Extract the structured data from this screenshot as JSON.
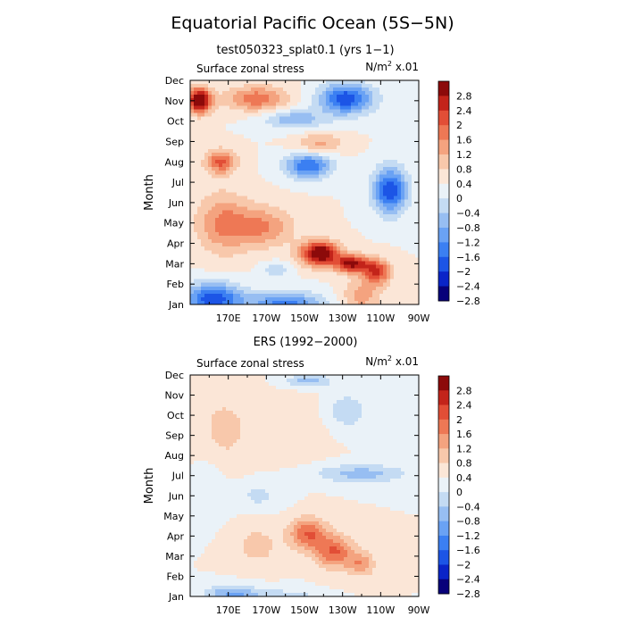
{
  "figure": {
    "title": "Equatorial Pacific Ocean (5S−5N)"
  },
  "colors": [
    "#08007a",
    "#0a24c8",
    "#1c55e6",
    "#3b7ff2",
    "#6aa2f4",
    "#97bef2",
    "#c4dbf3",
    "#eaf2f8",
    "#fbe6d7",
    "#f8c8ab",
    "#f4a37f",
    "#ee7855",
    "#e24e36",
    "#c3241a",
    "#8c0a0a"
  ],
  "chart_data": [
    {
      "type": "heatmap",
      "panel_title": "test050323_splat0.1 (yrs 1−1)",
      "left_label": "Surface zonal stress",
      "units_base": "N/m",
      "units_sup": "2",
      "units_suffix": " x.01",
      "ylabel": "Month",
      "xlim": [
        150,
        270
      ],
      "x_ticks": [
        {
          "value": 170,
          "label": "170E"
        },
        {
          "value": 190,
          "label": "170W"
        },
        {
          "value": 210,
          "label": "150W"
        },
        {
          "value": 230,
          "label": "130W"
        },
        {
          "value": 250,
          "label": "110W"
        },
        {
          "value": 270,
          "label": "90W"
        }
      ],
      "months": [
        "Jan",
        "Feb",
        "Mar",
        "Apr",
        "May",
        "Jun",
        "Jul",
        "Aug",
        "Sep",
        "Oct",
        "Nov",
        "Dec"
      ],
      "colorbar": {
        "levels": [
          -3.2,
          -2.8,
          -2.4,
          -2,
          -1.6,
          -1.2,
          -0.8,
          -0.4,
          0,
          0.4,
          0.8,
          1.2,
          1.6,
          2,
          2.4,
          2.8,
          3.2
        ],
        "labels": [
          "2.8",
          "2.4",
          "2",
          "1.6",
          "1.2",
          "0.8",
          "0.4",
          "0",
          "−0.4",
          "−0.8",
          "−1.2",
          "−1.6",
          "−2",
          "−2.4",
          "−2.8"
        ]
      },
      "features": [
        {
          "lon": 155,
          "m": 11,
          "sx": 6,
          "sy": 0.6,
          "a": 3.2
        },
        {
          "lon": 185,
          "m": 11.1,
          "sx": 16,
          "sy": 0.6,
          "a": 1.5
        },
        {
          "lon": 232,
          "m": 11.1,
          "sx": 14,
          "sy": 0.75,
          "a": -2.3
        },
        {
          "lon": 205,
          "m": 10.1,
          "sx": 16,
          "sy": 0.5,
          "a": -1.1
        },
        {
          "lon": 218,
          "m": 8.9,
          "sx": 12,
          "sy": 0.5,
          "a": 0.9
        },
        {
          "lon": 166,
          "m": 8,
          "sx": 8,
          "sy": 0.6,
          "a": 1.7
        },
        {
          "lon": 212,
          "m": 7.8,
          "sx": 12,
          "sy": 0.6,
          "a": -2.0
        },
        {
          "lon": 255,
          "m": 6.6,
          "sx": 9,
          "sy": 1.1,
          "a": -2.4
        },
        {
          "lon": 167,
          "m": 5,
          "sx": 14,
          "sy": 1.5,
          "a": 1.2
        },
        {
          "lon": 188,
          "m": 4.8,
          "sx": 16,
          "sy": 1.0,
          "a": 1.2
        },
        {
          "lon": 218,
          "m": 3.5,
          "sx": 10,
          "sy": 0.6,
          "a": 3.0
        },
        {
          "lon": 235,
          "m": 3.0,
          "sx": 9,
          "sy": 0.45,
          "a": 2.5
        },
        {
          "lon": 248,
          "m": 2.6,
          "sx": 7,
          "sy": 0.6,
          "a": 2.0
        },
        {
          "lon": 162,
          "m": 1.3,
          "sx": 15,
          "sy": 0.75,
          "a": -2.3
        },
        {
          "lon": 200,
          "m": 1.0,
          "sx": 20,
          "sy": 0.6,
          "a": -1.8
        },
        {
          "lon": 240,
          "m": 1.4,
          "sx": 10,
          "sy": 0.8,
          "a": 1.0
        },
        {
          "lon": 195,
          "m": 2.7,
          "sx": 8,
          "sy": 0.4,
          "a": -0.6
        }
      ]
    },
    {
      "type": "heatmap",
      "panel_title": "ERS (1992−2000)",
      "left_label": "Surface zonal stress",
      "units_base": "N/m",
      "units_sup": "2",
      "units_suffix": " x.01",
      "ylabel": "Month",
      "xlim": [
        150,
        270
      ],
      "x_ticks": [
        {
          "value": 170,
          "label": "170E"
        },
        {
          "value": 190,
          "label": "170W"
        },
        {
          "value": 210,
          "label": "150W"
        },
        {
          "value": 230,
          "label": "130W"
        },
        {
          "value": 250,
          "label": "110W"
        },
        {
          "value": 270,
          "label": "90W"
        }
      ],
      "months": [
        "Jan",
        "Feb",
        "Mar",
        "Apr",
        "May",
        "Jun",
        "Jul",
        "Aug",
        "Sep",
        "Oct",
        "Nov",
        "Dec"
      ],
      "colorbar": {
        "levels": [
          -3.2,
          -2.8,
          -2.4,
          -2,
          -1.6,
          -1.2,
          -0.8,
          -0.4,
          0,
          0.4,
          0.8,
          1.2,
          1.6,
          2,
          2.4,
          2.8,
          3.2
        ],
        "labels": [
          "2.8",
          "2.4",
          "2",
          "1.6",
          "1.2",
          "0.8",
          "0.4",
          "0",
          "−0.4",
          "−0.8",
          "−1.2",
          "−1.6",
          "−2",
          "−2.4",
          "−2.8"
        ]
      },
      "features": [
        {
          "lon": 168,
          "m": 9.3,
          "sx": 14,
          "sy": 1.8,
          "a": 0.55
        },
        {
          "lon": 205,
          "m": 9.5,
          "sx": 16,
          "sy": 1.5,
          "a": 0.4
        },
        {
          "lon": 232,
          "m": 10.2,
          "sx": 12,
          "sy": 0.9,
          "a": -0.7
        },
        {
          "lon": 212,
          "m": 11.7,
          "sx": 12,
          "sy": 0.35,
          "a": -1.0
        },
        {
          "lon": 240,
          "m": 7.1,
          "sx": 24,
          "sy": 0.45,
          "a": -1.0
        },
        {
          "lon": 186,
          "m": 6.0,
          "sx": 12,
          "sy": 0.7,
          "a": -0.5
        },
        {
          "lon": 212,
          "m": 4.1,
          "sx": 10,
          "sy": 0.8,
          "a": 1.6
        },
        {
          "lon": 226,
          "m": 3.2,
          "sx": 10,
          "sy": 0.8,
          "a": 1.6
        },
        {
          "lon": 240,
          "m": 2.6,
          "sx": 7,
          "sy": 0.6,
          "a": 1.1
        },
        {
          "lon": 185,
          "m": 3.5,
          "sx": 12,
          "sy": 1.0,
          "a": 0.6
        },
        {
          "lon": 172,
          "m": 1.1,
          "sx": 14,
          "sy": 0.45,
          "a": -1.3
        },
        {
          "lon": 200,
          "m": 0.8,
          "sx": 15,
          "sy": 0.45,
          "a": -1.1
        },
        {
          "lon": 160,
          "m": 6.5,
          "sx": 8,
          "sy": 1.5,
          "a": -0.3
        }
      ]
    }
  ]
}
